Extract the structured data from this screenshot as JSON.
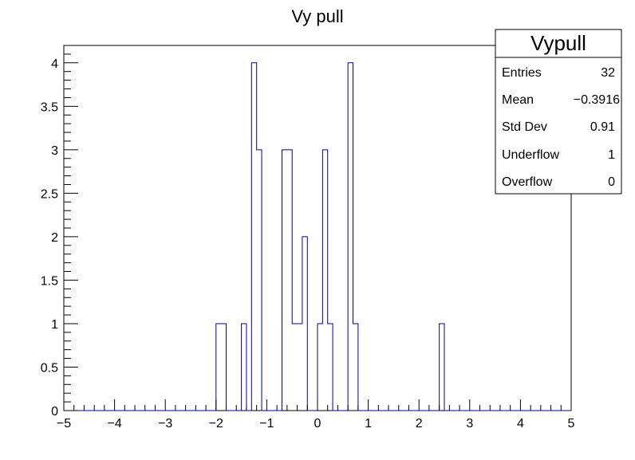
{
  "chart_data": {
    "type": "histogram",
    "title": "Vy pull",
    "xlabel": "",
    "ylabel": "",
    "xlim": [
      -5,
      5
    ],
    "ylim": [
      0,
      4.2
    ],
    "bin_width": 0.1,
    "x_ticks": [
      "−5",
      "−4",
      "−3",
      "−2",
      "−1",
      "0",
      "1",
      "2",
      "3",
      "4",
      "5"
    ],
    "y_ticks": [
      "0",
      "0.5",
      "1",
      "1.5",
      "2",
      "2.5",
      "3",
      "3.5",
      "4"
    ],
    "bins": [
      {
        "x_low": -2.0,
        "count": 1
      },
      {
        "x_low": -1.9,
        "count": 1
      },
      {
        "x_low": -1.5,
        "count": 1
      },
      {
        "x_low": -1.3,
        "count": 4
      },
      {
        "x_low": -1.2,
        "count": 3
      },
      {
        "x_low": -0.7,
        "count": 3
      },
      {
        "x_low": -0.6,
        "count": 3
      },
      {
        "x_low": -0.5,
        "count": 1
      },
      {
        "x_low": -0.4,
        "count": 1
      },
      {
        "x_low": -0.3,
        "count": 2
      },
      {
        "x_low": 0.0,
        "count": 1
      },
      {
        "x_low": 0.1,
        "count": 3
      },
      {
        "x_low": 0.2,
        "count": 1
      },
      {
        "x_low": 0.6,
        "count": 4
      },
      {
        "x_low": 0.7,
        "count": 1
      },
      {
        "x_low": 2.4,
        "count": 1
      }
    ],
    "line_color": "#000099",
    "grid": false
  },
  "stats_box": {
    "title": "Vypull",
    "rows": [
      {
        "label": "Entries",
        "value": "32"
      },
      {
        "label": "Mean",
        "value": "−0.3916"
      },
      {
        "label": "Std Dev",
        "value": "0.91"
      },
      {
        "label": "Underflow",
        "value": "1"
      },
      {
        "label": "Overflow",
        "value": "0"
      }
    ]
  }
}
